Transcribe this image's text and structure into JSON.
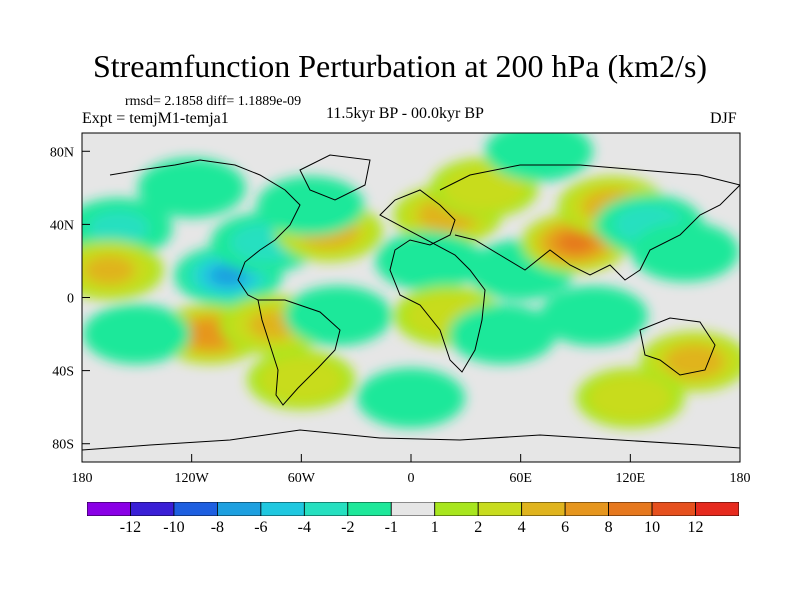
{
  "title": "Streamfunction Perturbation at 200 hPa (km2/s)",
  "stats": "rmsd= 2.1858 diff= 1.1889e-09",
  "expt": "Expt = temjM1-temja1",
  "period": "11.5kyr BP - 00.0kyr BP",
  "season": "DJF",
  "map": {
    "lat_ticks": [
      "80N",
      "40N",
      "0",
      "40S",
      "80S"
    ],
    "lon_ticks": [
      "180",
      "120W",
      "60W",
      "0",
      "60E",
      "120E",
      "180"
    ],
    "lon_range": [
      -180,
      180
    ],
    "lat_range": [
      -90,
      90
    ]
  },
  "colorbar": {
    "colors": [
      "#8a00e6",
      "#3a1fd6",
      "#1e5fe0",
      "#1ea0e0",
      "#20c8e0",
      "#26e0c0",
      "#1ee89a",
      "#e6e6e6",
      "#a8e61e",
      "#c8dc1e",
      "#e0b41e",
      "#e6961e",
      "#e6781e",
      "#e6501e",
      "#e62a1e"
    ],
    "labels": [
      "-12",
      "-10",
      "-8",
      "-6",
      "-4",
      "-2",
      "-1",
      "1",
      "2",
      "4",
      "6",
      "8",
      "10",
      "12"
    ]
  },
  "field": [
    {
      "lon": -160,
      "lat": 38,
      "v": -3
    },
    {
      "lon": -165,
      "lat": 15,
      "v": 4
    },
    {
      "lon": -120,
      "lat": 60,
      "v": -2
    },
    {
      "lon": -100,
      "lat": 12,
      "v": -7
    },
    {
      "lon": -80,
      "lat": 30,
      "v": -4
    },
    {
      "lon": -45,
      "lat": 36,
      "v": 5
    },
    {
      "lon": -55,
      "lat": 50,
      "v": -2
    },
    {
      "lon": -110,
      "lat": -20,
      "v": 7
    },
    {
      "lon": -75,
      "lat": -15,
      "v": 4
    },
    {
      "lon": -40,
      "lat": -10,
      "v": -2
    },
    {
      "lon": 20,
      "lat": 45,
      "v": 5
    },
    {
      "lon": 40,
      "lat": 60,
      "v": 3
    },
    {
      "lon": 10,
      "lat": 20,
      "v": -2
    },
    {
      "lon": 60,
      "lat": 15,
      "v": -2
    },
    {
      "lon": 90,
      "lat": 30,
      "v": 8
    },
    {
      "lon": 110,
      "lat": 50,
      "v": 5
    },
    {
      "lon": 130,
      "lat": 40,
      "v": -4
    },
    {
      "lon": 150,
      "lat": 25,
      "v": -2
    },
    {
      "lon": 155,
      "lat": -35,
      "v": 5
    },
    {
      "lon": 20,
      "lat": -10,
      "v": 3
    },
    {
      "lon": 50,
      "lat": -20,
      "v": -2
    },
    {
      "lon": 100,
      "lat": -10,
      "v": -2
    },
    {
      "lon": -60,
      "lat": -45,
      "v": 3
    },
    {
      "lon": 0,
      "lat": -55,
      "v": -1.5
    },
    {
      "lon": 70,
      "lat": 80,
      "v": -2
    },
    {
      "lon": 120,
      "lat": -55,
      "v": 3
    },
    {
      "lon": -150,
      "lat": -20,
      "v": -2
    }
  ]
}
